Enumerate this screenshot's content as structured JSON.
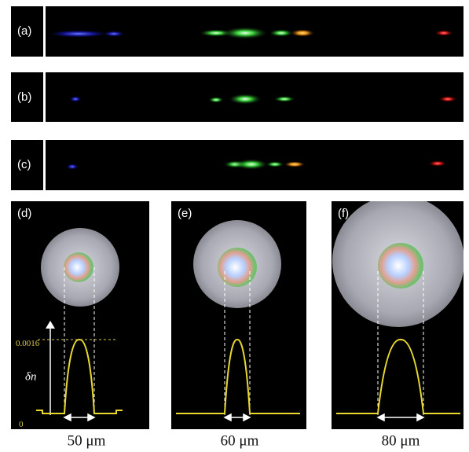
{
  "strips": [
    {
      "label": "(a)"
    },
    {
      "label": "(b)"
    },
    {
      "label": "(c)"
    }
  ],
  "fibers": [
    {
      "label": "(d)",
      "width": "50 μm"
    },
    {
      "label": "(e)",
      "width": "60 μm"
    },
    {
      "label": "(f)",
      "width": "80 μm"
    }
  ],
  "profile_axis": {
    "peak": "0.0016",
    "symbol": "δn",
    "zero": "0"
  }
}
